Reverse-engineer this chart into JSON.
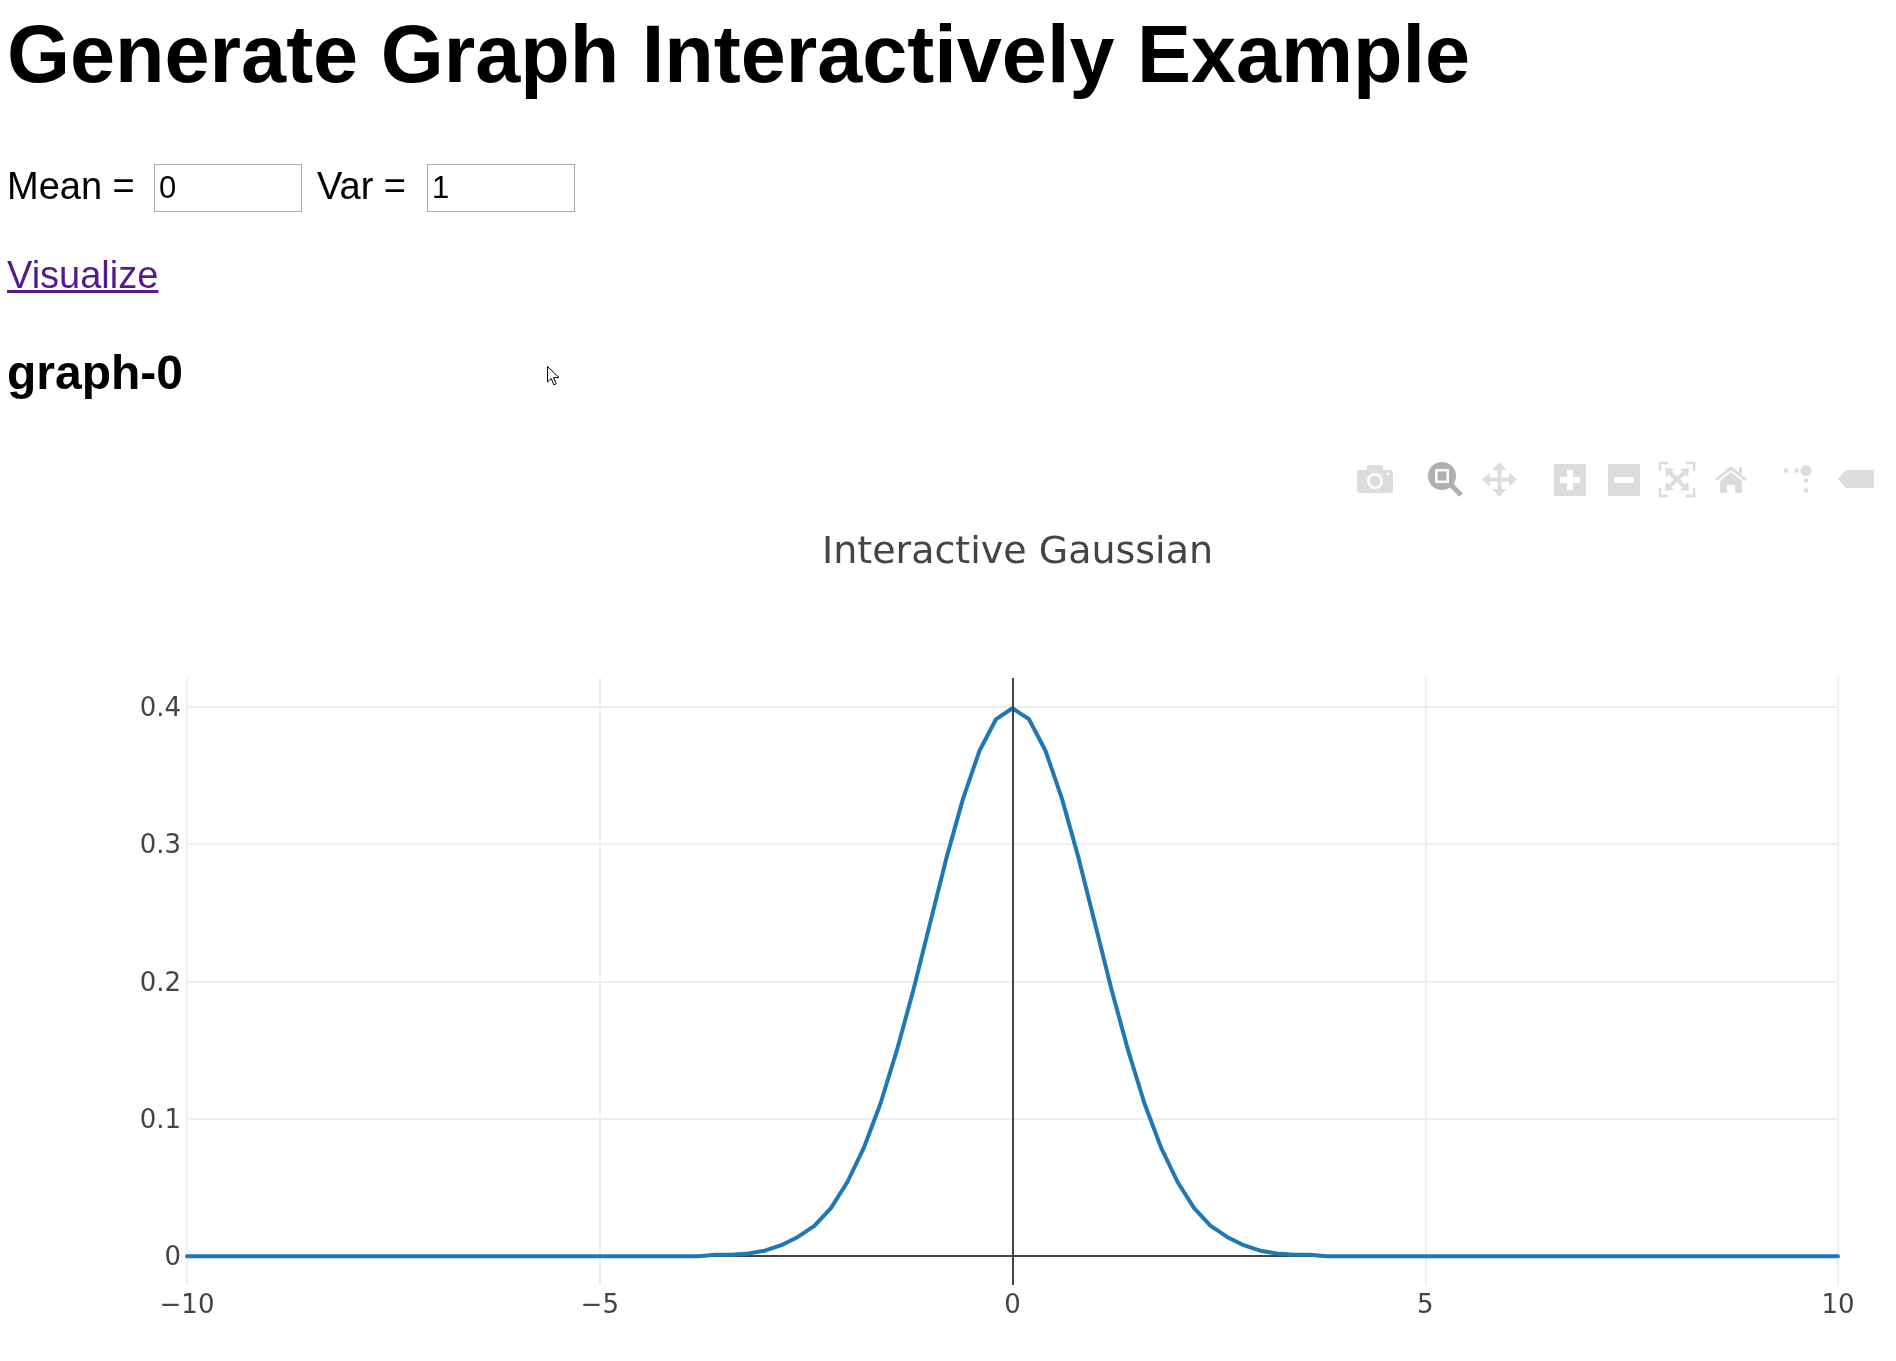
{
  "chart_data": {
    "type": "line",
    "title": "Interactive Gaussian",
    "annotations": [
      "Generate Graph Interactively Example",
      "Mean =",
      "0",
      "Var =",
      "1",
      "Visualize",
      "graph-0"
    ],
    "x": [
      -10,
      -4,
      -3.8,
      -3.6,
      -3.4,
      -3.2,
      -3,
      -2.8,
      -2.6,
      -2.4,
      -2.2,
      -2,
      -1.8,
      -1.6,
      -1.4,
      -1.2,
      -1,
      -0.8,
      -0.6,
      -0.4,
      -0.2,
      0,
      0.2,
      0.4,
      0.6,
      0.8,
      1,
      1.2,
      1.4,
      1.6,
      1.8,
      2,
      2.2,
      2.4,
      2.6,
      2.8,
      3,
      3.2,
      3.4,
      3.6,
      3.8,
      4,
      10
    ],
    "series": [
      {
        "color": "#1f77b4",
        "values": [
          0,
          0,
          0,
          0.001,
          0.001,
          0.002,
          0.004,
          0.008,
          0.014,
          0.022,
          0.035,
          0.054,
          0.079,
          0.111,
          0.15,
          0.194,
          0.242,
          0.29,
          0.333,
          0.368,
          0.391,
          0.399,
          0.391,
          0.368,
          0.333,
          0.29,
          0.242,
          0.194,
          0.15,
          0.111,
          0.079,
          0.054,
          0.035,
          0.022,
          0.014,
          0.008,
          0.004,
          0.002,
          0.001,
          0.001,
          0,
          0,
          0
        ]
      }
    ],
    "xlim": [
      -10,
      10
    ],
    "xticks": [
      {
        "value": -10,
        "label": "−10"
      },
      {
        "value": -5,
        "label": "−5"
      },
      0,
      5,
      10
    ],
    "ylim": [
      -0.021,
      0.421
    ],
    "yticks": [
      0,
      0.1,
      0.2,
      0.3,
      0.4
    ],
    "grid": true,
    "marker": "none",
    "line_style": "solid",
    "ref_lines": [
      {
        "axis": "x",
        "value": 0,
        "color": "#444444"
      }
    ]
  }
}
